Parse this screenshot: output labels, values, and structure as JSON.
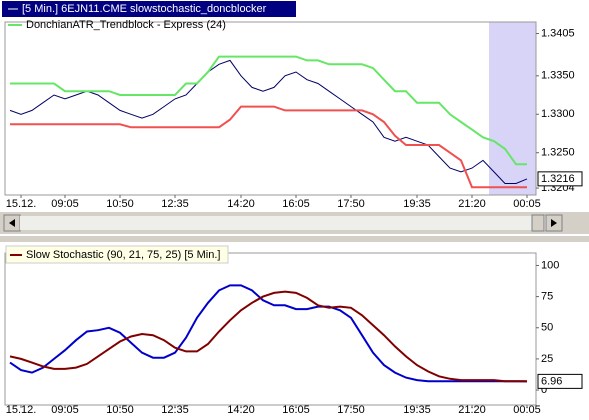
{
  "chart_data": [
    {
      "type": "line",
      "title": "[5 Min.] 6EJN11.CME slowstochastic_doncblocker",
      "legend": "DonchianATR_Trendblock - Express  (24)",
      "categories": [
        null,
        "15.12.",
        null,
        null,
        null,
        "09:05",
        null,
        null,
        null,
        null,
        "10:50",
        null,
        null,
        null,
        null,
        "12:35",
        null,
        null,
        null,
        null,
        null,
        "14:20",
        null,
        null,
        null,
        null,
        "16:05",
        null,
        null,
        null,
        null,
        "17:50",
        null,
        null,
        null,
        null,
        null,
        "19:35",
        null,
        null,
        null,
        null,
        "21:20",
        null,
        null,
        null,
        null,
        "00:05"
      ],
      "ylim": [
        1.3195,
        1.342
      ],
      "yticks": [
        {
          "value": 1.3204,
          "label": "1.3204"
        },
        {
          "value": 1.325,
          "label": "1.3250"
        },
        {
          "value": 1.33,
          "label": "1.3300"
        },
        {
          "value": 1.335,
          "label": "1.3350"
        },
        {
          "value": 1.3405,
          "label": "1.3405"
        }
      ],
      "series": [
        {
          "color": "#000066",
          "values": [
            1.3305,
            1.33,
            1.3305,
            1.3315,
            1.3325,
            1.332,
            1.3325,
            1.333,
            1.3325,
            1.3315,
            1.3305,
            1.33,
            1.3295,
            1.33,
            1.331,
            1.332,
            1.3325,
            1.334,
            1.3355,
            1.3365,
            1.337,
            1.335,
            1.3335,
            1.333,
            1.3335,
            1.335,
            1.3355,
            1.3345,
            1.334,
            1.333,
            1.332,
            1.331,
            1.33,
            1.329,
            1.327,
            1.3265,
            1.327,
            1.3265,
            1.326,
            1.3245,
            1.323,
            1.3225,
            1.323,
            1.324,
            1.3225,
            1.321,
            1.321,
            1.3216
          ],
          "value_labels": [
            null,
            null,
            null,
            null,
            null,
            null,
            null,
            null,
            null,
            null,
            null,
            null,
            null,
            null,
            null,
            null,
            null,
            null,
            null,
            null,
            null,
            null,
            null,
            null,
            null,
            null,
            null,
            null,
            null,
            null,
            null,
            null,
            null,
            null,
            null,
            null,
            null,
            null,
            null,
            null,
            null,
            null,
            null,
            null,
            null,
            null,
            null,
            "1.3216"
          ]
        },
        {
          "color": "#66e666",
          "values": [
            1.334,
            1.334,
            1.334,
            1.334,
            1.334,
            1.333,
            1.333,
            1.333,
            1.333,
            1.333,
            1.3325,
            1.3325,
            1.3325,
            1.3325,
            1.3325,
            1.3325,
            1.334,
            1.334,
            1.3355,
            1.3375,
            1.3375,
            1.3375,
            1.3375,
            1.3375,
            1.3375,
            1.3375,
            1.3375,
            1.337,
            1.337,
            1.3365,
            1.3365,
            1.3365,
            1.3365,
            1.336,
            1.3345,
            1.333,
            1.333,
            1.3315,
            1.3315,
            1.3315,
            1.33,
            1.329,
            1.328,
            1.327,
            1.3265,
            1.3255,
            1.3235,
            1.3235
          ]
        },
        {
          "color": "#f05050",
          "values": [
            1.3287,
            1.3287,
            1.3287,
            1.3287,
            1.3287,
            1.3287,
            1.3287,
            1.3287,
            1.3287,
            1.3287,
            1.3287,
            1.3283,
            1.3283,
            1.3283,
            1.3283,
            1.3283,
            1.3283,
            1.3283,
            1.3283,
            1.3283,
            1.3293,
            1.331,
            1.331,
            1.331,
            1.331,
            1.3305,
            1.3305,
            1.3305,
            1.3305,
            1.3305,
            1.3305,
            1.3305,
            1.3305,
            1.33,
            1.329,
            1.3272,
            1.326,
            1.326,
            1.326,
            1.326,
            1.325,
            1.324,
            1.3205,
            1.3205,
            1.3205,
            1.3205,
            1.3205,
            1.3205
          ]
        }
      ]
    },
    {
      "type": "line",
      "legend": "Slow Stochastic  (90, 21, 75, 25) [5 Min.]",
      "categories": [
        null,
        "15.12.",
        null,
        null,
        null,
        "09:05",
        null,
        null,
        null,
        null,
        "10:50",
        null,
        null,
        null,
        null,
        "12:35",
        null,
        null,
        null,
        null,
        null,
        "14:20",
        null,
        null,
        null,
        null,
        "16:05",
        null,
        null,
        null,
        null,
        "17:50",
        null,
        null,
        null,
        null,
        null,
        "19:35",
        null,
        null,
        null,
        null,
        "21:20",
        null,
        null,
        null,
        null,
        "00:05"
      ],
      "ylim": [
        -12,
        110
      ],
      "yticks": [
        0,
        25,
        50,
        75,
        100
      ],
      "series": [
        {
          "color": "#0000cc",
          "values": [
            22,
            16,
            14,
            18,
            25,
            32,
            40,
            47,
            48,
            50,
            46,
            38,
            30,
            26,
            26,
            30,
            42,
            58,
            70,
            80,
            84,
            84,
            80,
            72,
            68,
            68,
            65,
            65,
            67,
            67,
            64,
            58,
            44,
            30,
            20,
            14,
            10,
            8,
            7,
            7,
            7,
            7,
            7,
            7,
            7,
            7,
            7,
            6.96
          ],
          "value_labels": [
            null,
            null,
            null,
            null,
            null,
            null,
            null,
            null,
            null,
            null,
            null,
            null,
            null,
            null,
            null,
            null,
            null,
            null,
            null,
            null,
            null,
            null,
            null,
            null,
            null,
            null,
            null,
            null,
            null,
            null,
            null,
            null,
            null,
            null,
            null,
            null,
            null,
            null,
            null,
            null,
            null,
            null,
            null,
            null,
            null,
            null,
            null,
            "6.96"
          ]
        },
        {
          "color": "#800000",
          "values": [
            27,
            25,
            22,
            19,
            17,
            17,
            18,
            21,
            27,
            33,
            39,
            43,
            45,
            44,
            40,
            34,
            31,
            31,
            37,
            47,
            56,
            64,
            70,
            75,
            78,
            79,
            78,
            74,
            68,
            66,
            67,
            66,
            60,
            52,
            44,
            35,
            27,
            20,
            15,
            11,
            9,
            8,
            8,
            8,
            8,
            7,
            7,
            7
          ]
        }
      ]
    }
  ]
}
